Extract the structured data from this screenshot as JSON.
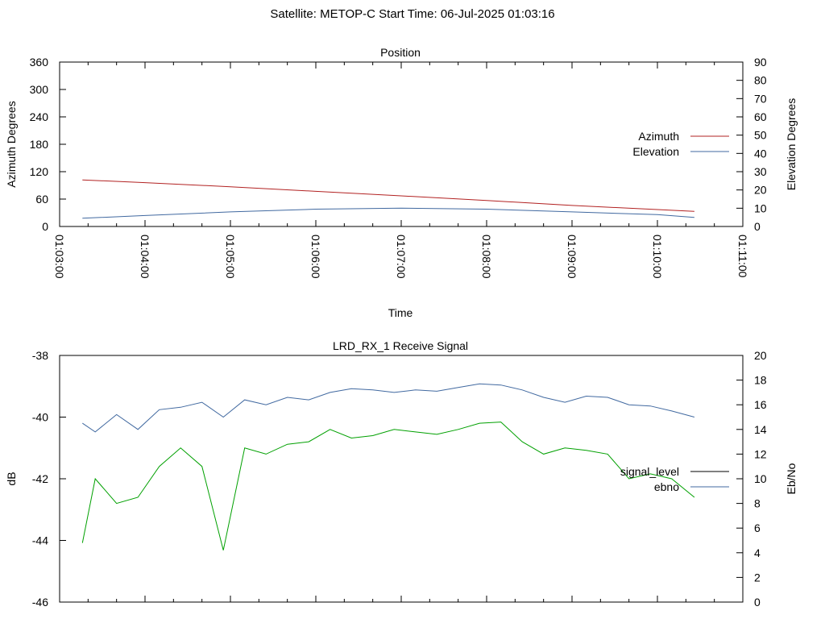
{
  "figure": {
    "header": "Satellite: METOP-C    Start Time: 06-Jul-2025 01:03:16"
  },
  "chart_data": [
    {
      "type": "line",
      "title": "Position",
      "xlabel": "Time",
      "ylabel": "Azimuth Degrees",
      "y2label": "Elevation Degrees",
      "x_ticks": [
        "01:03:00",
        "01:04:00",
        "01:05:00",
        "01:06:00",
        "01:07:00",
        "01:08:00",
        "01:09:00",
        "01:10:00",
        "01:11:00"
      ],
      "xlim": [
        "01:03:00",
        "01:11:00"
      ],
      "ylim": [
        0,
        360
      ],
      "y_ticks": [
        0,
        60,
        120,
        180,
        240,
        300,
        360
      ],
      "y2lim": [
        0,
        90
      ],
      "y2_ticks": [
        0,
        10,
        20,
        30,
        40,
        50,
        60,
        70,
        80,
        90
      ],
      "legend_position": "right",
      "series": [
        {
          "name": "Azimuth",
          "axis": "left",
          "color": "#b22222",
          "x": [
            "01:03:16",
            "01:04:00",
            "01:05:00",
            "01:06:00",
            "01:07:00",
            "01:08:00",
            "01:09:00",
            "01:10:00",
            "01:10:26"
          ],
          "y": [
            102,
            96,
            87,
            77,
            67,
            57,
            46,
            37,
            33
          ]
        },
        {
          "name": "Elevation",
          "axis": "right",
          "color": "#4169a0",
          "x": [
            "01:03:16",
            "01:04:00",
            "01:05:00",
            "01:06:00",
            "01:07:00",
            "01:08:00",
            "01:09:00",
            "01:10:00",
            "01:10:26"
          ],
          "y": [
            4.5,
            6,
            8,
            9.5,
            10,
            9.5,
            8,
            6.5,
            5
          ]
        }
      ]
    },
    {
      "type": "line",
      "title": "LRD_RX_1 Receive Signal",
      "ylabel": "dB",
      "y2label": "Eb/No",
      "ylim": [
        -46,
        -38
      ],
      "y_ticks": [
        -46,
        -44,
        -42,
        -40,
        -38
      ],
      "y2lim": [
        0,
        20
      ],
      "y2_ticks": [
        0,
        2,
        4,
        6,
        8,
        10,
        12,
        14,
        16,
        18,
        20
      ],
      "xlim": [
        "01:03:00",
        "01:11:00"
      ],
      "legend_position": "right",
      "series": [
        {
          "name": "signal_level",
          "axis": "left",
          "color": "#000000",
          "x": [],
          "y": []
        },
        {
          "name": "ebno",
          "axis": "right",
          "color": "#4169a0",
          "x": [
            "01:03:16",
            "01:03:25",
            "01:03:40",
            "01:03:55",
            "01:04:10",
            "01:04:25",
            "01:04:40",
            "01:04:55",
            "01:05:10",
            "01:05:25",
            "01:05:40",
            "01:05:55",
            "01:06:10",
            "01:06:25",
            "01:06:40",
            "01:06:55",
            "01:07:10",
            "01:07:25",
            "01:07:40",
            "01:07:55",
            "01:08:10",
            "01:08:25",
            "01:08:40",
            "01:08:55",
            "01:09:10",
            "01:09:25",
            "01:09:40",
            "01:09:55",
            "01:10:10",
            "01:10:26"
          ],
          "y": [
            14.5,
            13.8,
            15.2,
            14.0,
            15.6,
            15.8,
            16.2,
            15.0,
            16.4,
            16.0,
            16.6,
            16.4,
            17.0,
            17.3,
            17.2,
            17.0,
            17.2,
            17.1,
            17.4,
            17.7,
            17.6,
            17.2,
            16.6,
            16.2,
            16.7,
            16.6,
            16.0,
            15.9,
            15.5,
            15.0
          ]
        },
        {
          "name": "",
          "axis": "right",
          "color": "#00a000",
          "x": [
            "01:03:16",
            "01:03:25",
            "01:03:40",
            "01:03:55",
            "01:04:10",
            "01:04:25",
            "01:04:40",
            "01:04:55",
            "01:05:10",
            "01:05:25",
            "01:05:40",
            "01:05:55",
            "01:06:10",
            "01:06:25",
            "01:06:40",
            "01:06:55",
            "01:07:10",
            "01:07:25",
            "01:07:40",
            "01:07:55",
            "01:08:10",
            "01:08:25",
            "01:08:40",
            "01:08:55",
            "01:09:10",
            "01:09:25",
            "01:09:40",
            "01:09:55",
            "01:10:10",
            "01:10:26"
          ],
          "y": [
            4.8,
            10.0,
            8.0,
            8.5,
            11.0,
            12.5,
            11.0,
            4.2,
            12.5,
            12.0,
            12.8,
            13.0,
            14.0,
            13.3,
            13.5,
            14.0,
            13.8,
            13.6,
            14.0,
            14.5,
            14.6,
            13.0,
            12.0,
            12.5,
            12.3,
            12.0,
            10.0,
            10.4,
            10.0,
            8.5
          ]
        }
      ]
    }
  ]
}
